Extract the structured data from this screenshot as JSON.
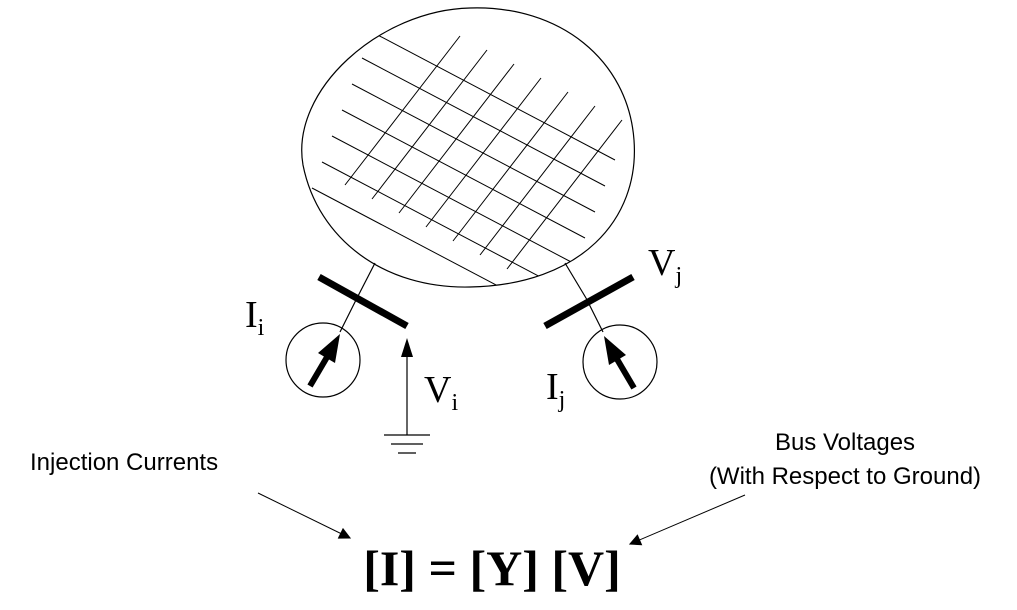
{
  "labels": {
    "current_i": {
      "main": "I",
      "sub": "i"
    },
    "current_j": {
      "main": "I",
      "sub": "j"
    },
    "voltage_i": {
      "main": "V",
      "sub": "i"
    },
    "voltage_j": {
      "main": "V",
      "sub": "j"
    },
    "injection_currents": "Injection Currents",
    "bus_voltages_line1": "Bus Voltages",
    "bus_voltages_line2": "(With Respect to Ground)"
  },
  "equation": "[I] = [Y] [V]",
  "colors": {
    "ink": "#000000",
    "background": "#ffffff"
  }
}
